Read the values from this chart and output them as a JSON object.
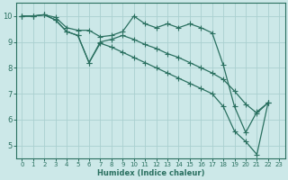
{
  "xlabel": "Humidex (Indice chaleur)",
  "xlim": [
    -0.5,
    23.5
  ],
  "ylim": [
    4.5,
    10.5
  ],
  "xticks": [
    0,
    1,
    2,
    3,
    4,
    5,
    6,
    7,
    8,
    9,
    10,
    11,
    12,
    13,
    14,
    15,
    16,
    17,
    18,
    19,
    20,
    21,
    22,
    23
  ],
  "yticks": [
    5,
    6,
    7,
    8,
    9,
    10
  ],
  "bg_color": "#cce8e8",
  "grid_color": "#aad0d0",
  "line_color": "#2a7060",
  "lines": [
    {
      "x": [
        0,
        1,
        2,
        3,
        4,
        5,
        6,
        7,
        8,
        9,
        10,
        11,
        12,
        13,
        14,
        15,
        16,
        17,
        18,
        19,
        20,
        21,
        22
      ],
      "y": [
        10.0,
        10.0,
        10.05,
        9.95,
        9.55,
        9.45,
        9.45,
        9.2,
        9.25,
        9.4,
        10.0,
        9.7,
        9.55,
        9.7,
        9.55,
        9.7,
        9.55,
        9.35,
        8.1,
        6.5,
        5.5,
        6.3,
        6.65
      ]
    },
    {
      "x": [
        0,
        1,
        2,
        3,
        4,
        5,
        6,
        7,
        8,
        9,
        10,
        11,
        12,
        13,
        14,
        15,
        16,
        17,
        18,
        19,
        20,
        21,
        22
      ],
      "y": [
        10.0,
        10.0,
        10.05,
        9.85,
        9.4,
        9.25,
        8.2,
        9.0,
        9.1,
        9.25,
        9.1,
        8.9,
        8.75,
        8.55,
        8.4,
        8.2,
        8.0,
        7.8,
        7.55,
        7.1,
        6.6,
        6.25,
        6.65
      ]
    },
    {
      "x": [
        0,
        1,
        2,
        3,
        4,
        5,
        6,
        7,
        8,
        9,
        10,
        11,
        12,
        13,
        14,
        15,
        16,
        17,
        18,
        19,
        20,
        21,
        22
      ],
      "y": [
        10.0,
        10.0,
        10.05,
        9.85,
        9.4,
        9.25,
        8.2,
        8.95,
        8.8,
        8.6,
        8.4,
        8.2,
        8.0,
        7.8,
        7.6,
        7.4,
        7.2,
        7.0,
        6.5,
        5.55,
        5.15,
        4.65,
        6.65
      ]
    }
  ]
}
